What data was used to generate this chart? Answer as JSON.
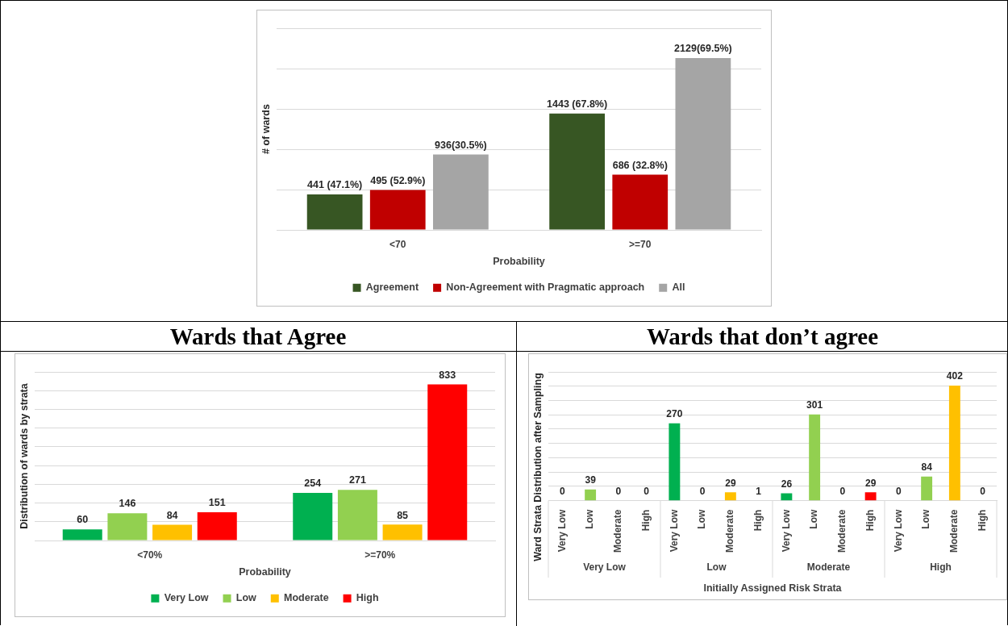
{
  "chart_data": [
    {
      "type": "bar",
      "xlabel": "Probability",
      "ylabel": "# of wards",
      "categories": [
        "<70",
        ">=70"
      ],
      "series": [
        {
          "name": "Agreement",
          "color": "#375623",
          "values": [
            441,
            1443
          ],
          "value_labels": [
            "441 (47.1%)",
            "1443 (67.8%)"
          ]
        },
        {
          "name": "Non-Agreement with Pragmatic approach",
          "color": "#c00000",
          "values": [
            495,
            686
          ],
          "value_labels": [
            "495 (52.9%)",
            "686 (32.8%)"
          ]
        },
        {
          "name": "All",
          "color": "#a5a5a5",
          "values": [
            936,
            2129
          ],
          "value_labels": [
            "936(30.5%)",
            "2129(69.5%)"
          ]
        }
      ],
      "ylim": [
        0,
        2500
      ],
      "yticks": [
        {
          "value": 0,
          "label": null
        },
        {
          "value": 500,
          "label": null
        },
        {
          "value": 1000,
          "label": null
        },
        {
          "value": 1500,
          "label": null
        },
        {
          "value": 2000,
          "label": null
        },
        {
          "value": 2500,
          "label": null
        }
      ],
      "grid": "y",
      "tick_labels": "x",
      "legend": "bottom"
    },
    {
      "type": "bar",
      "title": "Wards that Agree",
      "xlabel": "Probability",
      "ylabel": "Distribution of wards by strata",
      "categories": [
        "<70%",
        ">=70%"
      ],
      "series": [
        {
          "name": "Very Low",
          "color": "#00b050",
          "values": [
            60,
            254
          ]
        },
        {
          "name": "Low",
          "color": "#92d050",
          "values": [
            146,
            271
          ]
        },
        {
          "name": "Moderate",
          "color": "#ffc000",
          "values": [
            84,
            85
          ]
        },
        {
          "name": "High",
          "color": "#ff0000",
          "values": [
            151,
            833
          ]
        }
      ],
      "ylim": [
        0,
        900
      ],
      "yticks": [
        {
          "value": 0,
          "label": null
        },
        {
          "value": 100,
          "label": null
        },
        {
          "value": 200,
          "label": null
        },
        {
          "value": 300,
          "label": null
        },
        {
          "value": 400,
          "label": null
        },
        {
          "value": 500,
          "label": null
        },
        {
          "value": 600,
          "label": null
        },
        {
          "value": 700,
          "label": null
        },
        {
          "value": 800,
          "label": null
        },
        {
          "value": 900,
          "label": null
        }
      ],
      "grid": "y",
      "tick_labels": "x",
      "legend": "bottom",
      "data_labels": true
    },
    {
      "type": "bar",
      "title": "Wards that don’t agree",
      "xlabel": "Initially Assigned Risk Strata",
      "ylabel": "Ward Strata Distribution after Sampling",
      "categories": [
        "Very Low",
        "Low",
        "Moderate",
        "High",
        "Very Low",
        "Low",
        "Moderate",
        "High",
        "Very Low",
        "Low",
        "Moderate",
        "High",
        "Very Low",
        "Low",
        "Moderate",
        "High"
      ],
      "values": [
        0,
        39,
        0,
        0,
        270,
        0,
        29,
        1,
        26,
        301,
        0,
        29,
        0,
        84,
        402,
        0
      ],
      "colors": [
        "#00b050",
        "#92d050",
        "#ffc000",
        "#ff0000",
        "#00b050",
        "#92d050",
        "#ffc000",
        "#ff0000",
        "#00b050",
        "#92d050",
        "#ffc000",
        "#ff0000",
        "#00b050",
        "#92d050",
        "#ffc000",
        "#ff0000"
      ],
      "annotations": [
        "Very Low",
        "Low",
        "Moderate",
        "High"
      ],
      "ylim": [
        0,
        450
      ],
      "yticks": [
        {
          "value": 0,
          "label": null
        },
        {
          "value": 50,
          "label": null
        },
        {
          "value": 100,
          "label": null
        },
        {
          "value": 150,
          "label": null
        },
        {
          "value": 200,
          "label": null
        },
        {
          "value": 250,
          "label": null
        },
        {
          "value": 300,
          "label": null
        },
        {
          "value": 350,
          "label": null
        },
        {
          "value": 400,
          "label": null
        },
        {
          "value": 450,
          "label": null
        }
      ],
      "grid": "y",
      "tick_labels": "x",
      "legend": false,
      "data_labels": true
    }
  ]
}
